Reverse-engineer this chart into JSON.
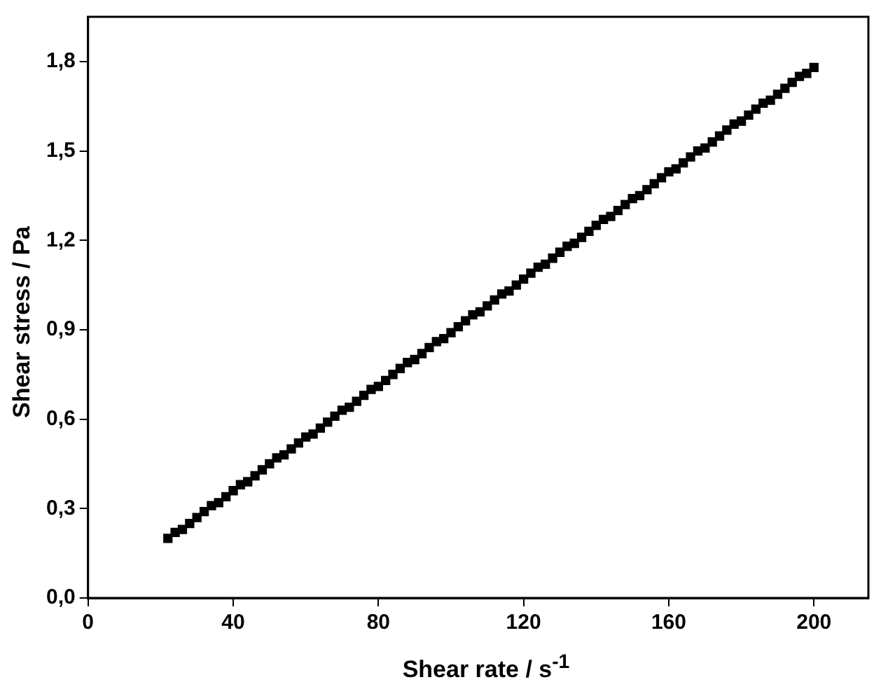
{
  "chart_data": {
    "type": "scatter",
    "xlabel": "Shear rate / s$^{-1}$",
    "ylabel": "Shear stress / Pa",
    "marker": "square",
    "grid": false,
    "legend": false,
    "xlim": [
      0,
      215
    ],
    "xticks": [
      0,
      40,
      80,
      120,
      160,
      200
    ],
    "ylim": [
      0,
      1.95
    ],
    "yticks": [
      {
        "value": 0,
        "label": "0,0"
      },
      {
        "value": 0.3,
        "label": "0,3"
      },
      {
        "value": 0.6,
        "label": "0,6"
      },
      {
        "value": 0.9,
        "label": "0,9"
      },
      {
        "value": 1.2,
        "label": "1,2"
      },
      {
        "value": 1.5,
        "label": "1,5"
      },
      {
        "value": 1.8,
        "label": "1,8"
      }
    ],
    "series": [
      {
        "color": "#000000",
        "x": [
          22,
          24,
          26,
          28,
          30,
          32,
          34,
          36,
          38,
          40,
          42,
          44,
          46,
          48,
          50,
          52,
          54,
          56,
          58,
          60,
          62,
          64,
          66,
          68,
          70,
          72,
          74,
          76,
          78,
          80,
          82,
          84,
          86,
          88,
          90,
          92,
          94,
          96,
          98,
          100,
          102,
          104,
          106,
          108,
          110,
          112,
          114,
          116,
          118,
          120,
          122,
          124,
          126,
          128,
          130,
          132,
          134,
          136,
          138,
          140,
          142,
          144,
          146,
          148,
          150,
          152,
          154,
          156,
          158,
          160,
          162,
          164,
          166,
          168,
          170,
          172,
          174,
          176,
          178,
          180,
          182,
          184,
          186,
          188,
          190,
          192,
          194,
          196,
          198,
          200
        ],
        "values": [
          0.2,
          0.22,
          0.23,
          0.25,
          0.27,
          0.29,
          0.31,
          0.32,
          0.34,
          0.36,
          0.38,
          0.39,
          0.41,
          0.43,
          0.45,
          0.47,
          0.48,
          0.5,
          0.52,
          0.54,
          0.55,
          0.57,
          0.59,
          0.61,
          0.63,
          0.64,
          0.66,
          0.68,
          0.7,
          0.71,
          0.73,
          0.75,
          0.77,
          0.79,
          0.8,
          0.82,
          0.84,
          0.86,
          0.87,
          0.89,
          0.91,
          0.93,
          0.95,
          0.96,
          0.98,
          1.0,
          1.02,
          1.03,
          1.05,
          1.07,
          1.09,
          1.11,
          1.12,
          1.14,
          1.16,
          1.18,
          1.19,
          1.21,
          1.23,
          1.25,
          1.27,
          1.28,
          1.3,
          1.32,
          1.34,
          1.35,
          1.37,
          1.39,
          1.41,
          1.43,
          1.44,
          1.46,
          1.48,
          1.5,
          1.51,
          1.53,
          1.55,
          1.57,
          1.59,
          1.6,
          1.62,
          1.64,
          1.66,
          1.67,
          1.69,
          1.71,
          1.73,
          1.75,
          1.76,
          1.78
        ]
      }
    ]
  }
}
